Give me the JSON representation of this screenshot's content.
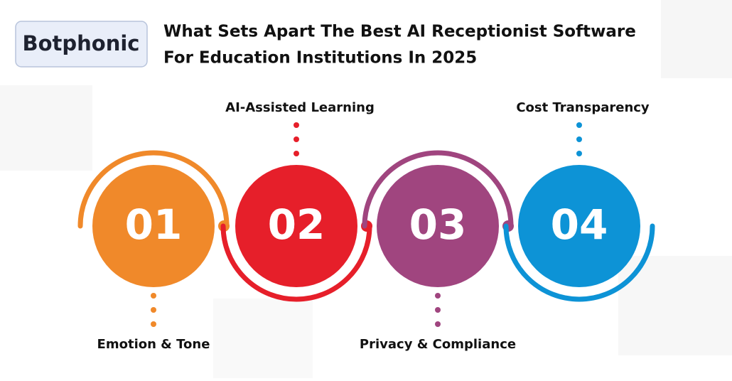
{
  "header": {
    "logo": "Botphonic",
    "title_lines": [
      "What Sets Apart The Best AI Receptionist Software",
      "For Education Institutions In 2025"
    ]
  },
  "steps": [
    {
      "number": "01",
      "label": "Emotion & Tone",
      "color": "#f0892a"
    },
    {
      "number": "02",
      "label": "AI-Assisted Learning",
      "color": "#e61f2a"
    },
    {
      "number": "03",
      "label": "Privacy & Compliance",
      "color": "#a0457f"
    },
    {
      "number": "04",
      "label": "Cost Transparency",
      "color": "#0d93d6"
    }
  ]
}
